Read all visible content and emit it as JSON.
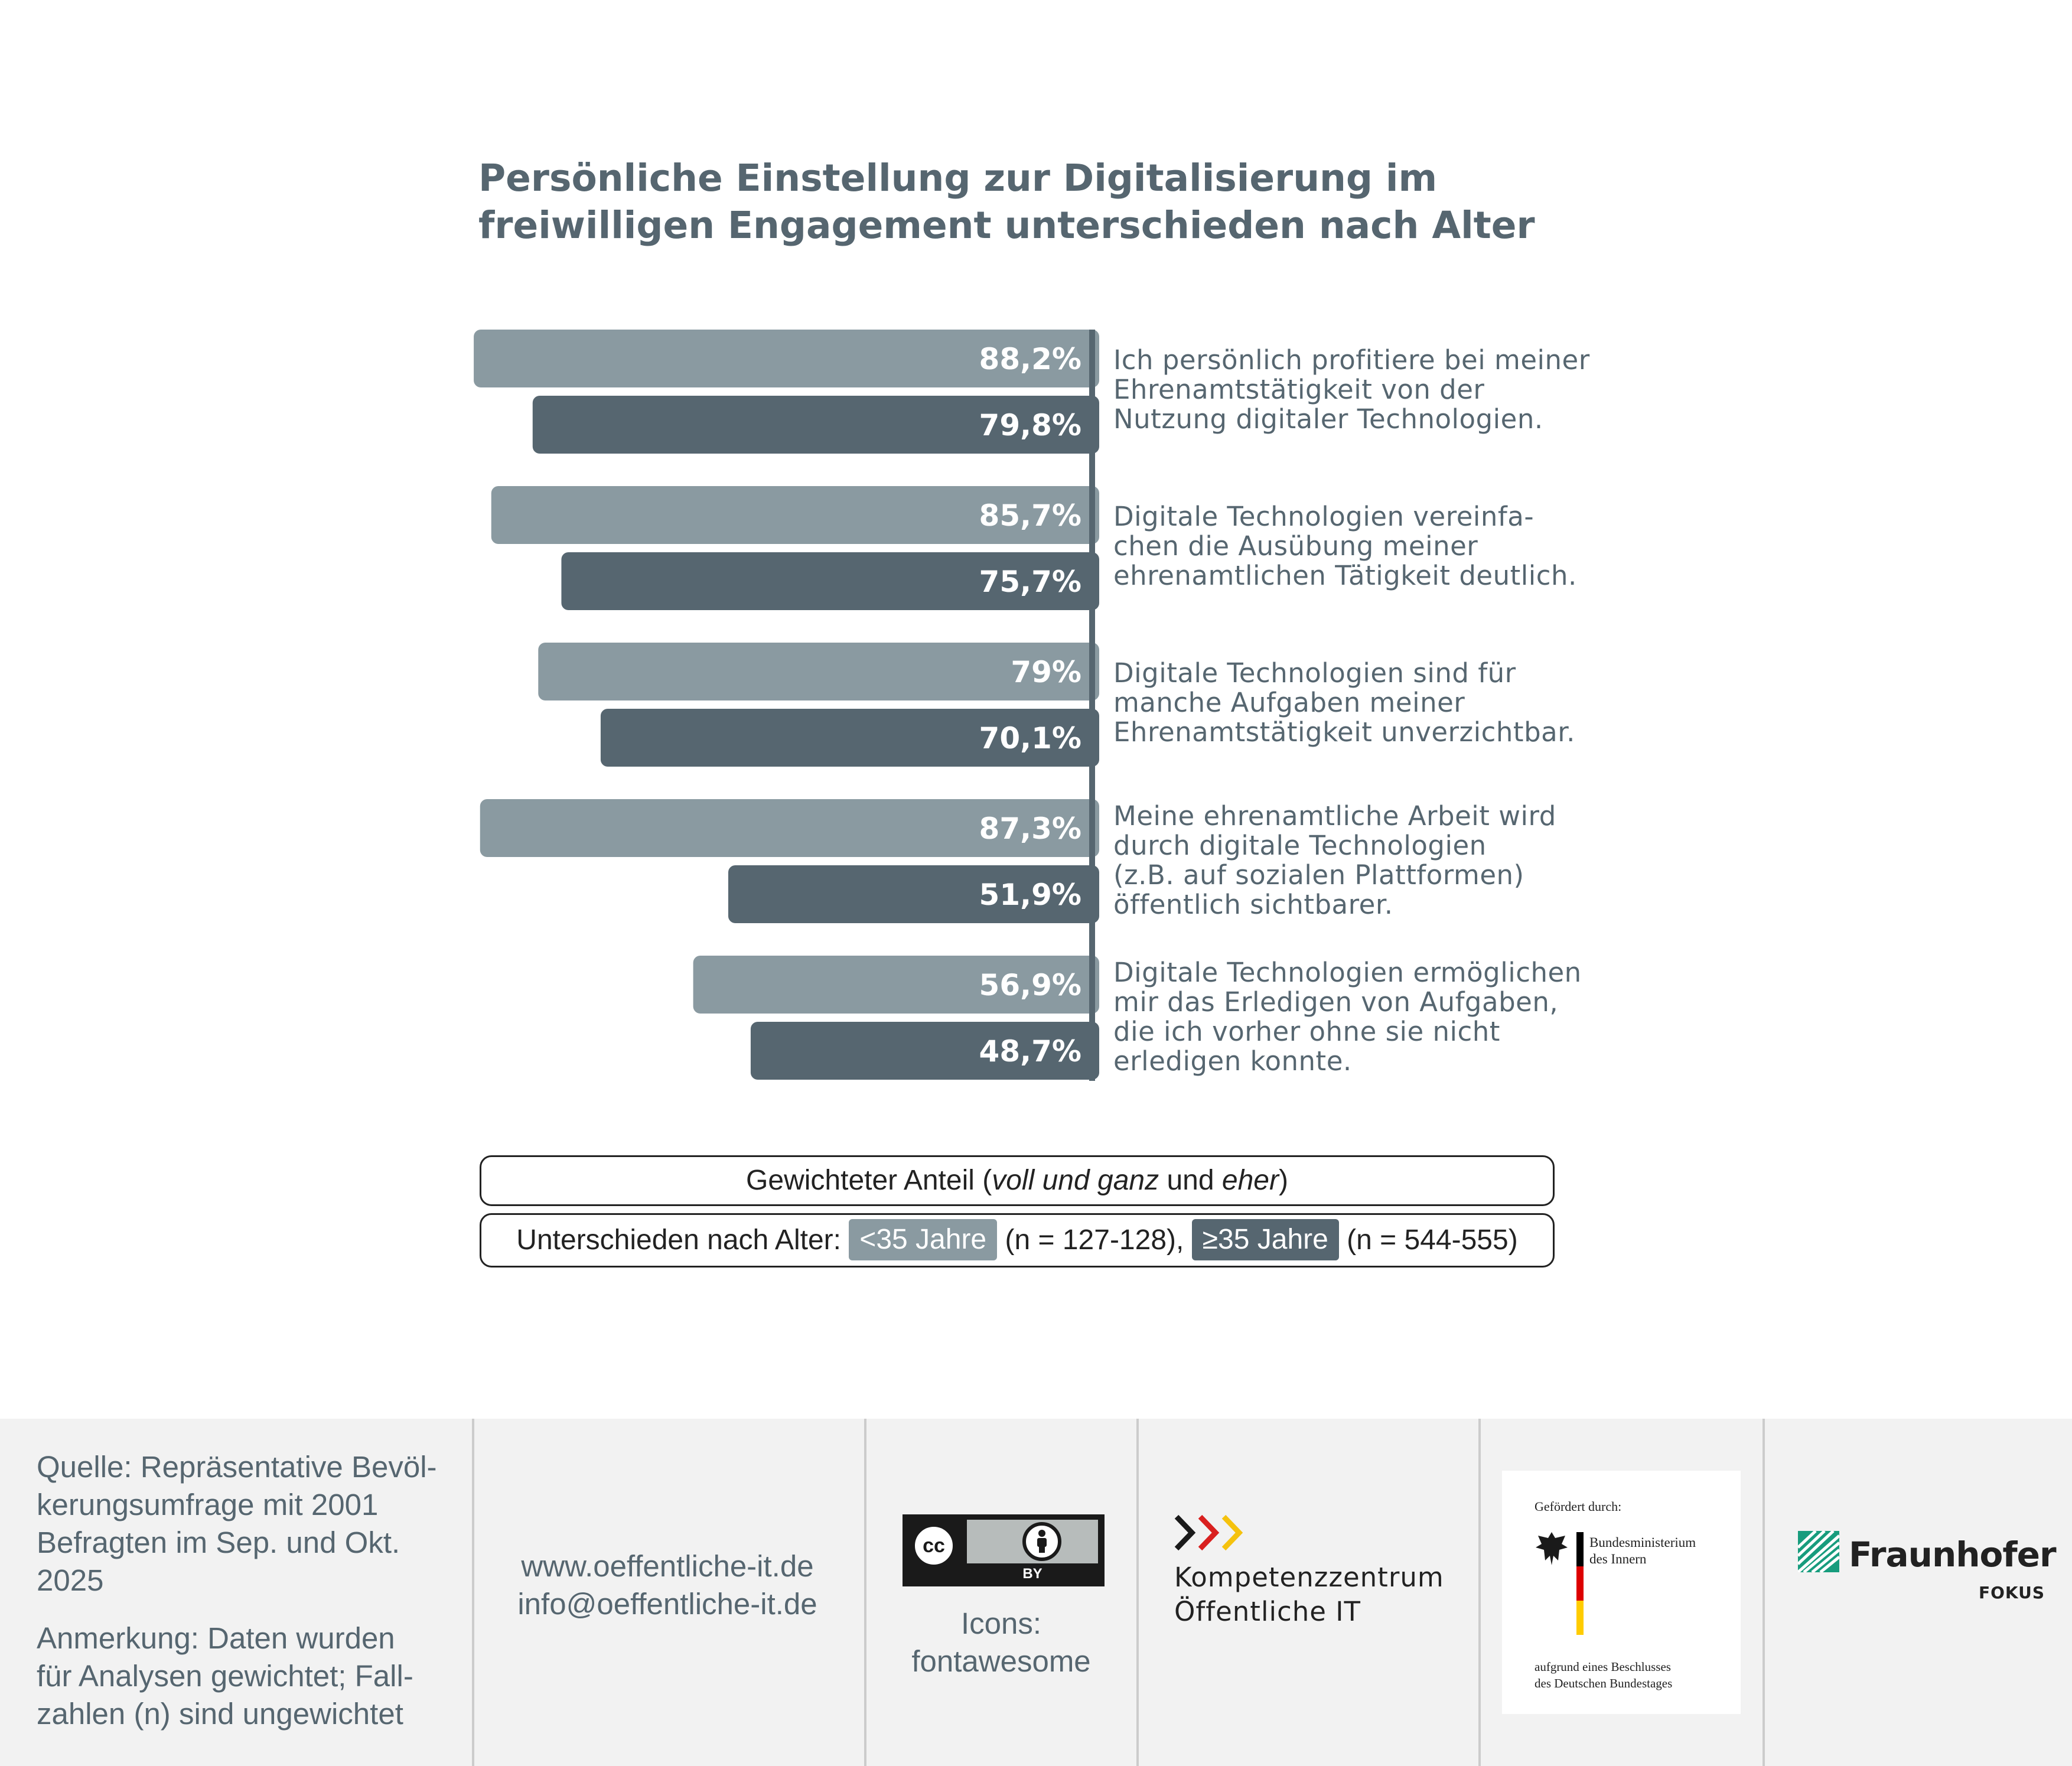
{
  "title": "Persönliche Einstellung zur Digitalisierung im freiwilligen Engagement unterschieden nach Alter",
  "colors": {
    "under35": "#8a9aa1",
    "over35": "#566670",
    "text": "#566670"
  },
  "chart_data": {
    "type": "bar",
    "orientation": "horizontal",
    "title": "Persönliche Einstellung zur Digitalisierung im freiwilligen Engagement unterschieden nach Alter",
    "unit": "%",
    "xlim": [
      0,
      100
    ],
    "categories": [
      "Ich persönlich profitiere bei meiner Ehrenamtstätigkeit von der Nutzung digitaler Technologien.",
      "Digitale Technologien vereinfa-chen die Ausübung meiner ehrenamtlichen Tätigkeit deutlich.",
      "Digitale Technologien sind für manche Aufgaben meiner Ehrenamtstätigkeit unverzichtbar.",
      "Meine ehrenamtliche Arbeit wird durch digitale Technologien (z.B. auf sozialen Plattformen) öffentlich sichtbarer.",
      "Digitale Technologien ermöglichen mir das Erledigen von Aufgaben, die ich vorher ohne sie nicht erledigen konnte."
    ],
    "series": [
      {
        "name": "<35 Jahre",
        "values": [
          88.2,
          85.7,
          79,
          87.3,
          56.9
        ],
        "labels": [
          "88,2%",
          "85,7%",
          "79%",
          "87,3%",
          "56,9%"
        ]
      },
      {
        "name": "≥35 Jahre",
        "values": [
          79.8,
          75.7,
          70.1,
          51.9,
          48.7
        ],
        "labels": [
          "79,8%",
          "75,7%",
          "70,1%",
          "51,9%",
          "48,7%"
        ]
      }
    ]
  },
  "statements": [
    [
      "Ich persönlich profitiere bei meiner",
      "Ehrenamtstätigkeit von der",
      "Nutzung digitaler Technologien."
    ],
    [
      "Digitale Technologien vereinfa-",
      "chen die Ausübung meiner",
      "ehrenamtlichen Tätigkeit deutlich."
    ],
    [
      "Digitale Technologien sind für",
      "manche Aufgaben meiner",
      "Ehrenamtstätigkeit unverzichtbar."
    ],
    [
      "Meine ehrenamtliche Arbeit wird",
      "durch digitale Technologien",
      "(z.B. auf sozialen Plattformen)",
      "öffentlich sichtbarer."
    ],
    [
      "Digitale Technologien ermöglichen",
      "mir das Erledigen von Aufgaben,",
      "die ich vorher ohne sie nicht",
      "erledigen konnte."
    ]
  ],
  "legend": {
    "weighted_prefix": "Gewichteter Anteil (",
    "weighted_italic1": "voll und ganz",
    "weighted_mid": " und ",
    "weighted_italic2": "eher",
    "weighted_suffix": ")",
    "age_prefix": "Unterschieden nach Alter:",
    "group1_label": "<35 Jahre",
    "group1_n": "(n = 127-128),",
    "group2_label": "≥35 Jahre",
    "group2_n": "(n = 544-555)"
  },
  "footer": {
    "source_lines": [
      "Quelle: Repräsentative Bevöl-",
      "kerungsumfrage mit 2001",
      "Befragten im Sep. und Okt.",
      "2025"
    ],
    "note_lines": [
      "Anmerkung: Daten wurden",
      "für Analysen gewichtet; Fall-",
      "zahlen (n) sind ungewichtet"
    ],
    "website": "www.oeffentliche-it.de",
    "email": "info@oeffentliche-it.de",
    "cc_label": "cc",
    "cc_by": "BY",
    "icons_credit_lines": [
      "Icons:",
      "fontawesome"
    ],
    "kompetenz_lines": [
      "Kompetenzzentrum",
      "Öffentliche IT"
    ],
    "bmi_funded": "Gefördert durch:",
    "bmi_name_lines": [
      "Bundesministerium",
      "des Innern"
    ],
    "bmi_decision_lines": [
      "aufgrund eines Beschlusses",
      "des Deutschen Bundestages"
    ],
    "fraunhofer": "Fraunhofer",
    "fokus": "FOKUS"
  }
}
